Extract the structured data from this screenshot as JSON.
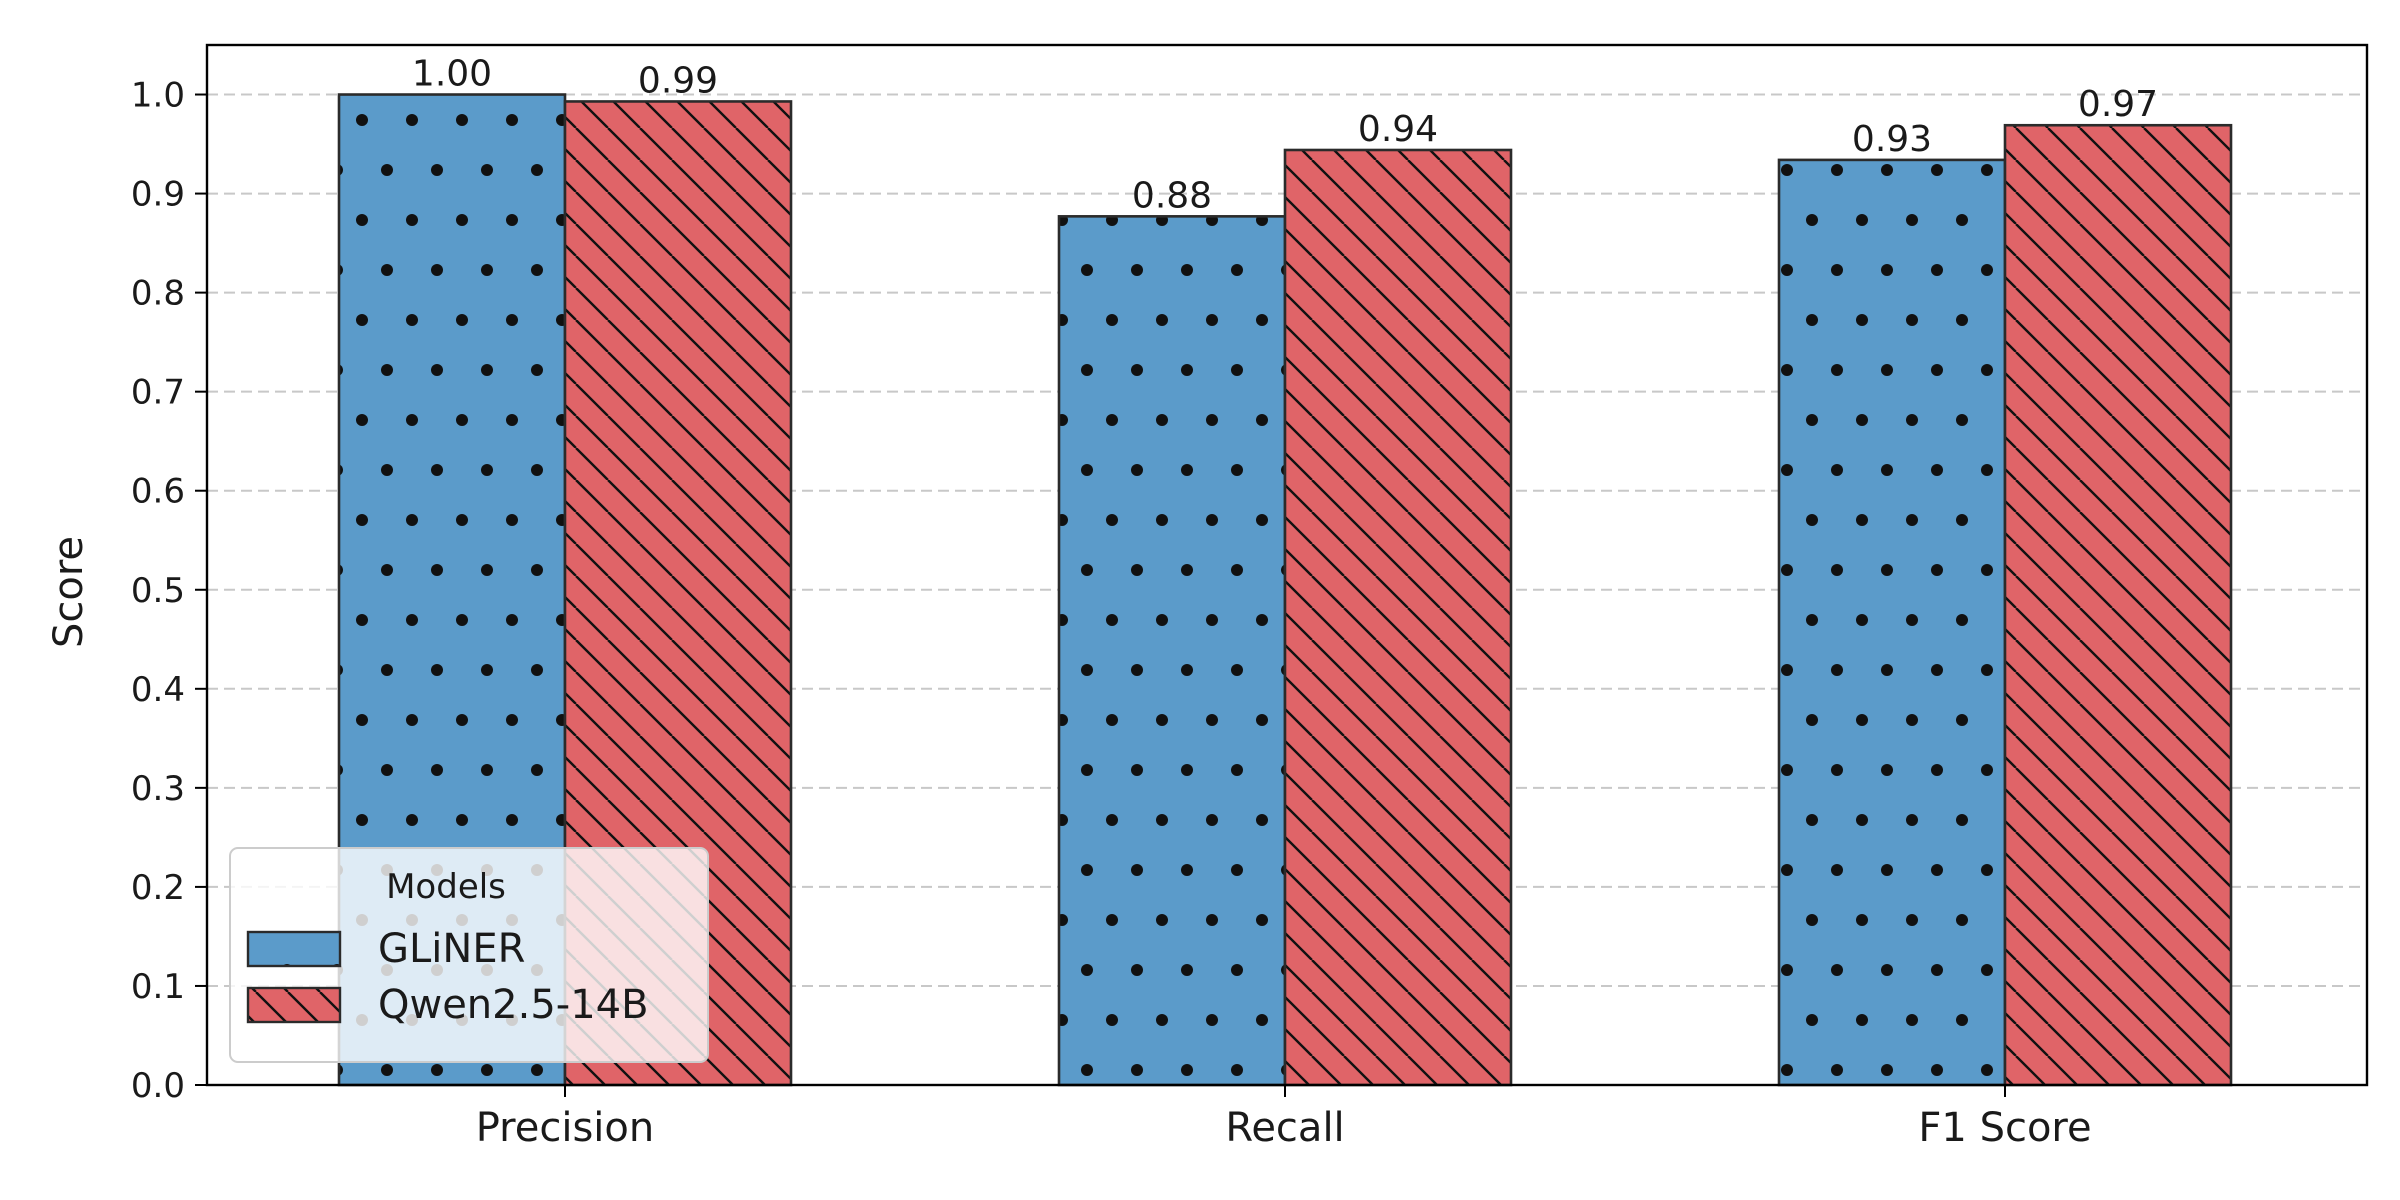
{
  "chart_data": {
    "type": "bar",
    "categories": [
      "Precision",
      "Recall",
      "F1 Score"
    ],
    "series": [
      {
        "name": "GLiNER",
        "values": [
          1.0,
          0.877,
          0.934
        ],
        "labels": [
          "1.00",
          "0.88",
          "0.93"
        ],
        "color": "#5b9bca",
        "hatch": "dots"
      },
      {
        "name": "Qwen2.5-14B",
        "values": [
          0.993,
          0.944,
          0.969
        ],
        "labels": [
          "0.99",
          "0.94",
          "0.97"
        ],
        "color": "#e06468",
        "hatch": "diagonal"
      }
    ],
    "ylabel": "Score",
    "xlabel": "",
    "ylim": [
      0,
      1.05
    ],
    "yticks": [
      "0.0",
      "0.1",
      "0.2",
      "0.3",
      "0.4",
      "0.5",
      "0.6",
      "0.7",
      "0.8",
      "0.9",
      "1.0"
    ],
    "grid": "y-dashed",
    "legend": {
      "title": "Models",
      "placement": "lower-left"
    }
  }
}
